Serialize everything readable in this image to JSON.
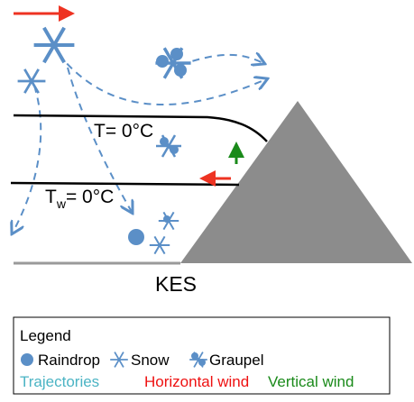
{
  "diagram": {
    "labels": {
      "freezing": "T= 0°C",
      "wet_bulb": {
        "main": "T",
        "sub": "w",
        "rest": "= 0°C"
      },
      "site": "KES"
    },
    "legend": {
      "title": "Legend",
      "items": [
        "Raindrop",
        "Snow",
        "Graupel"
      ],
      "lines": [
        "Trajectories",
        "Horizontal wind",
        "Vertical wind"
      ]
    }
  }
}
